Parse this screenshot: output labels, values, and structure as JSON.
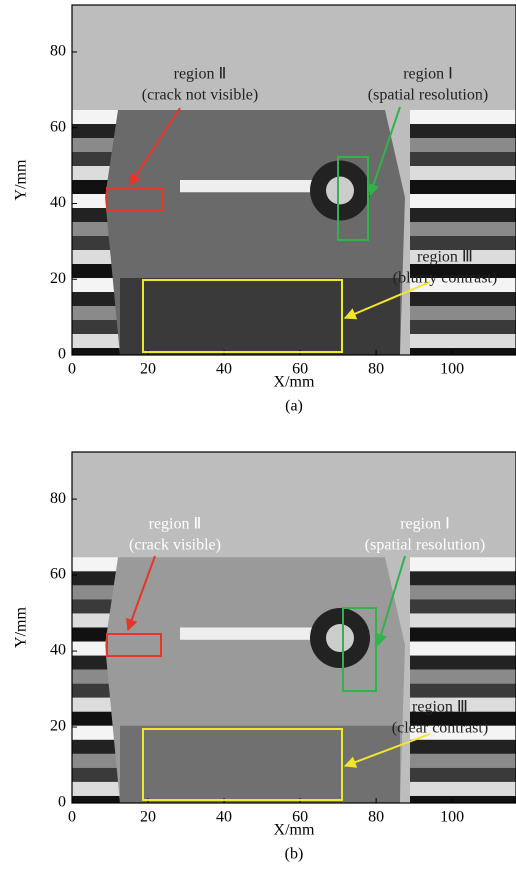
{
  "panels": [
    {
      "label": "(a)",
      "xlabel": "X/mm",
      "ylabel": "Y/mm",
      "xlim": [
        0,
        116.8
      ],
      "ylim": [
        0,
        92.4
      ],
      "xticks": [
        0,
        20,
        40,
        60,
        80,
        100
      ],
      "yticks": [
        0,
        20,
        40,
        60,
        80
      ],
      "annotations": [
        {
          "title": "region Ⅱ",
          "subtitle": "(crack not visible)"
        },
        {
          "title": "region Ⅰ",
          "subtitle": "(spatial resolution)"
        },
        {
          "title": "region Ⅲ",
          "subtitle": "(blurry contrast)"
        }
      ]
    },
    {
      "label": "(b)",
      "xlabel": "X/mm",
      "ylabel": "Y/mm",
      "xlim": [
        0,
        116.8
      ],
      "ylim": [
        0,
        92.4
      ],
      "xticks": [
        0,
        20,
        40,
        60,
        80,
        100
      ],
      "yticks": [
        0,
        20,
        40,
        60,
        80
      ],
      "annotations": [
        {
          "title": "region Ⅱ",
          "subtitle": "(crack visible)"
        },
        {
          "title": "region Ⅰ",
          "subtitle": "(spatial resolution)"
        },
        {
          "title": "region Ⅲ",
          "subtitle": "(clear contrast)"
        }
      ]
    }
  ]
}
